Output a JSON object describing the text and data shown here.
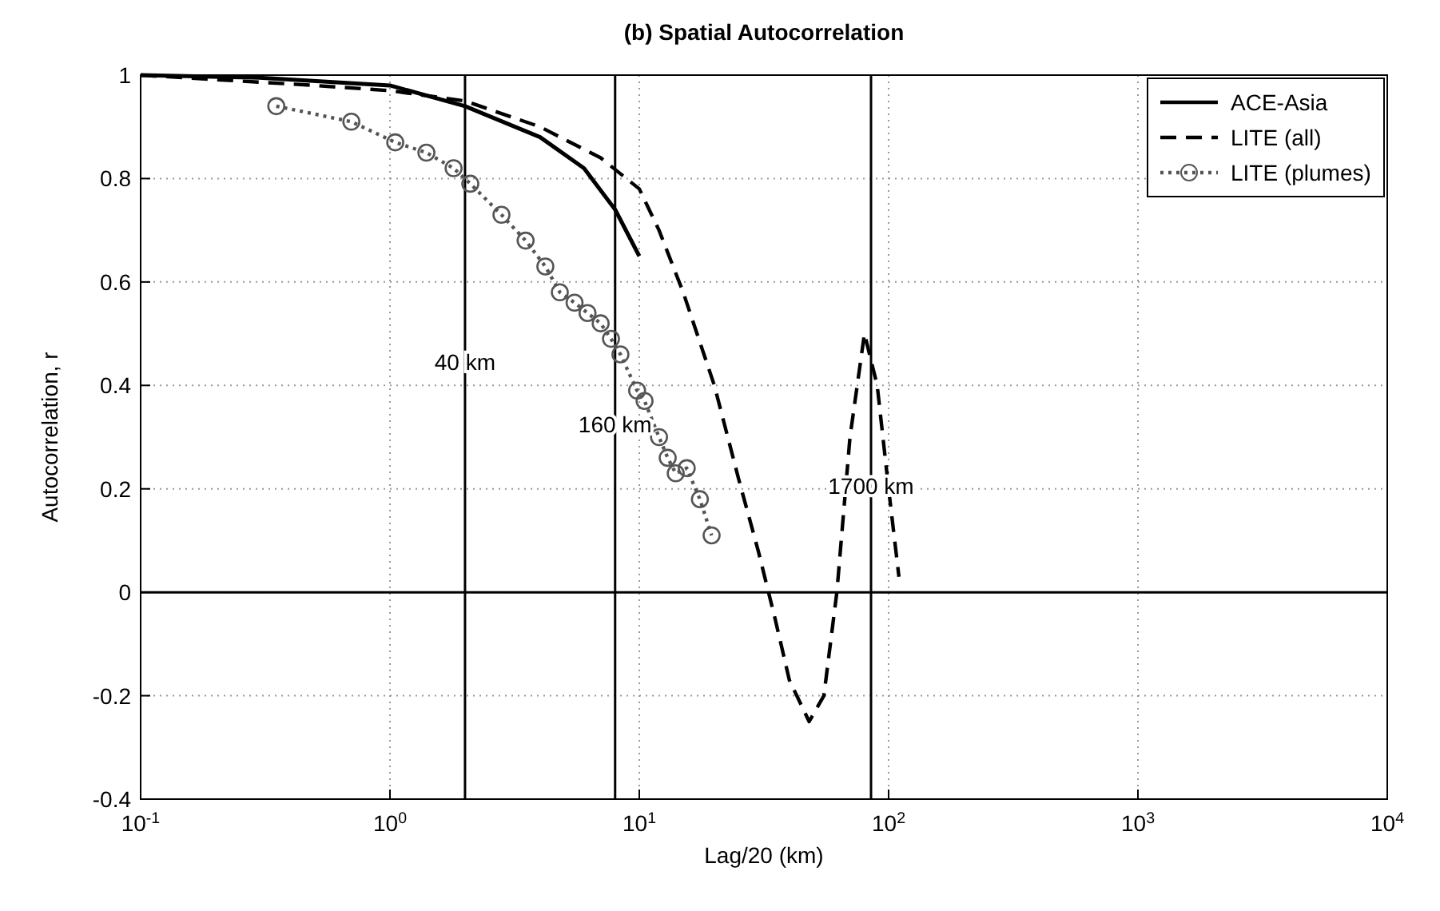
{
  "chart_data": {
    "type": "line",
    "title": "(b) Spatial Autocorrelation",
    "xlabel": "Lag/20 (km)",
    "ylabel": "Autocorrelation, r",
    "log": "x",
    "xlim": [
      0.1,
      10000
    ],
    "xticks": [
      {
        "value": 0.1,
        "label": "10$^{-1}$"
      },
      {
        "value": 1,
        "label": "10$^{0}$"
      },
      {
        "value": 10,
        "label": "10$^{1}$"
      },
      {
        "value": 100,
        "label": "10$^{2}$"
      },
      {
        "value": 1000,
        "label": "10$^{3}$"
      },
      {
        "value": 10000,
        "label": "10$^{4}$"
      }
    ],
    "ylim": [
      -0.4,
      1
    ],
    "yticks": [
      -0.4,
      -0.2,
      0,
      0.2,
      0.4,
      0.6,
      0.8,
      1
    ],
    "grid": true,
    "legend": "top right",
    "series": [
      {
        "name": "ACE-Asia",
        "color": "#000000",
        "line_style": "solid",
        "marker": "none",
        "x": [
          0.1,
          0.3,
          1,
          2,
          4,
          6,
          8,
          10
        ],
        "values": [
          1,
          0.995,
          0.98,
          0.94,
          0.88,
          0.82,
          0.74,
          0.65
        ]
      },
      {
        "name": "LITE (all)",
        "color": "#000000",
        "line_style": "dashed",
        "marker": "none",
        "x": [
          0.1,
          0.5,
          1,
          2,
          4,
          7,
          10,
          12,
          15,
          20,
          25,
          30,
          35,
          40,
          48,
          55,
          62,
          70,
          80,
          90,
          100,
          110
        ],
        "values": [
          1,
          0.98,
          0.97,
          0.95,
          0.9,
          0.84,
          0.78,
          0.7,
          0.58,
          0.4,
          0.22,
          0.08,
          -0.05,
          -0.17,
          -0.25,
          -0.2,
          0,
          0.3,
          0.5,
          0.4,
          0.2,
          0.03
        ]
      },
      {
        "name": "LITE (plumes)",
        "color": "#555555",
        "line_style": "dotted",
        "marker": "circle",
        "x": [
          0.35,
          0.7,
          1.05,
          1.4,
          1.8,
          2.1,
          2.8,
          3.5,
          4.2,
          4.8,
          5.5,
          6.2,
          7,
          7.7,
          8.4,
          9.8,
          10.5,
          12,
          13,
          14,
          15.5,
          17.5,
          19.5
        ],
        "values": [
          0.94,
          0.91,
          0.87,
          0.85,
          0.82,
          0.79,
          0.73,
          0.68,
          0.63,
          0.58,
          0.56,
          0.54,
          0.52,
          0.49,
          0.46,
          0.39,
          0.37,
          0.3,
          0.26,
          0.23,
          0.24,
          0.18,
          0.11
        ]
      }
    ],
    "ref_lines": [
      {
        "axis": "y",
        "value": 0,
        "color": "#000000"
      },
      {
        "axis": "x",
        "value": 2,
        "label": "40 km",
        "color": "#000000"
      },
      {
        "axis": "x",
        "value": 8,
        "label": "160 km",
        "color": "#000000"
      },
      {
        "axis": "x",
        "value": 85,
        "label": "1700 km",
        "color": "#000000"
      }
    ]
  }
}
